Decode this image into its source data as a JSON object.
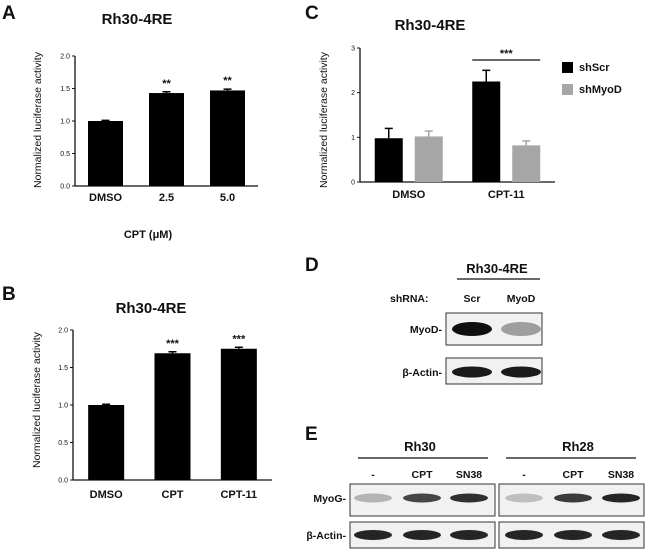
{
  "chart_data": [
    {
      "panel": "A",
      "type": "bar",
      "title": "Rh30-4RE",
      "categories": [
        "DMSO",
        "2.5",
        "5.0"
      ],
      "values": [
        1.0,
        1.43,
        1.47
      ],
      "errors": [
        0.01,
        0.02,
        0.02
      ],
      "significance": [
        "",
        "**",
        "**"
      ],
      "xlabel": "CPT (μM)",
      "ylabel": "Normalized luciferase activity",
      "ylim": [
        0,
        2.0
      ],
      "yticks": [
        "0.0",
        "0.5",
        "1.0",
        "1.5",
        "2.0"
      ],
      "colors": [
        "#000000"
      ]
    },
    {
      "panel": "B",
      "type": "bar",
      "title": "Rh30-4RE",
      "categories": [
        "DMSO",
        "CPT",
        "CPT-11"
      ],
      "values": [
        1.0,
        1.69,
        1.75
      ],
      "errors": [
        0.01,
        0.02,
        0.02
      ],
      "significance": [
        "",
        "***",
        "***"
      ],
      "xlabel": "",
      "ylabel": "Normalized luciferase activity",
      "ylim": [
        0,
        2.0
      ],
      "yticks": [
        "0.0",
        "0.5",
        "1.0",
        "1.5",
        "2.0"
      ],
      "colors": [
        "#000000"
      ]
    },
    {
      "panel": "C",
      "type": "bar",
      "title": "Rh30-4RE",
      "categories": [
        "DMSO",
        "CPT-11"
      ],
      "series": [
        {
          "name": "shScr",
          "values": [
            0.98,
            2.25
          ],
          "errors": [
            0.22,
            0.25
          ],
          "color": "#000000"
        },
        {
          "name": "shMyoD",
          "values": [
            1.02,
            0.82
          ],
          "errors": [
            0.12,
            0.1
          ],
          "color": "#a6a6a6"
        }
      ],
      "significance_bracket": {
        "category": "CPT-11",
        "label": "***"
      },
      "xlabel": "",
      "ylabel": "Normalized luciferase activity",
      "ylim": [
        0,
        3
      ],
      "yticks": [
        "0",
        "1",
        "2",
        "3"
      ],
      "legend_position": "top-right"
    }
  ],
  "blot_d": {
    "letter": "D",
    "header": "Rh30-4RE",
    "shrna_label": "shRNA:",
    "lanes": [
      "Scr",
      "MyoD"
    ],
    "rows": [
      {
        "label": "MyoD-",
        "intensity": [
          1.0,
          0.35
        ]
      },
      {
        "label": "β-Actin-",
        "intensity": [
          0.95,
          0.95
        ]
      }
    ]
  },
  "blot_e": {
    "letter": "E",
    "groups": [
      {
        "header": "Rh30",
        "lanes": [
          "-",
          "CPT",
          "SN38"
        ]
      },
      {
        "header": "Rh28",
        "lanes": [
          "-",
          "CPT",
          "SN38"
        ]
      }
    ],
    "rows": [
      {
        "label": "MyoG-",
        "intensity": [
          [
            0.25,
            0.75,
            0.85
          ],
          [
            0.2,
            0.8,
            0.9
          ]
        ]
      },
      {
        "label": "β-Actin-",
        "intensity": [
          [
            0.9,
            0.9,
            0.9
          ],
          [
            0.9,
            0.9,
            0.9
          ]
        ]
      }
    ]
  }
}
